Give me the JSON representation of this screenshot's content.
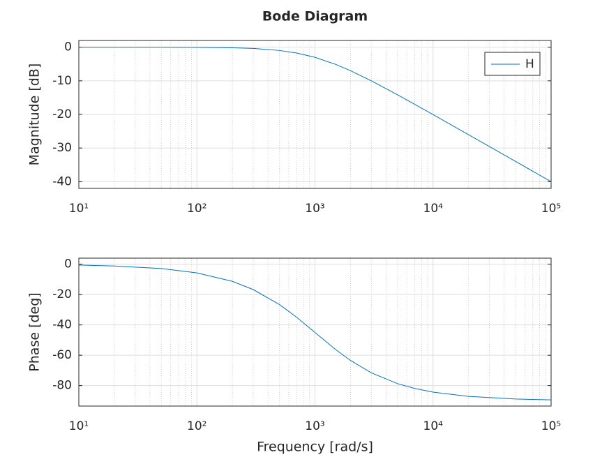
{
  "chart_data": [
    {
      "type": "line",
      "title": "Bode Diagram",
      "ylabel": "Magnitude [dB]",
      "x": [
        10,
        20,
        50,
        100,
        200,
        300,
        500,
        700,
        1000,
        1500,
        2000,
        3000,
        5000,
        7000,
        10000,
        20000,
        50000,
        100000
      ],
      "series": [
        {
          "name": "H",
          "color": "#0072bd",
          "values": [
            0,
            0,
            -0.01,
            -0.04,
            -0.17,
            -0.37,
            -0.97,
            -1.73,
            -3.01,
            -5.12,
            -6.99,
            -10,
            -14.15,
            -17,
            -20.04,
            -26.03,
            -33.98,
            -40
          ]
        }
      ],
      "xlim": [
        10,
        100000
      ],
      "xticks": [
        {
          "value": 10,
          "label": "10¹"
        },
        {
          "value": 100,
          "label": "10²"
        },
        {
          "value": 1000,
          "label": "10³"
        },
        {
          "value": 10000,
          "label": "10⁴"
        },
        {
          "value": 100000,
          "label": "10⁵"
        }
      ],
      "ylim": [
        -42,
        2
      ],
      "yticks": [
        -40,
        -30,
        -20,
        -10,
        0
      ],
      "log_x": true,
      "grid": true,
      "minor_grid": true,
      "legend": "upper right"
    },
    {
      "type": "line",
      "ylabel": "Phase [deg]",
      "xlabel": "Frequency [rad/s]",
      "x": [
        10,
        20,
        50,
        100,
        200,
        300,
        500,
        700,
        1000,
        1500,
        2000,
        3000,
        5000,
        7000,
        10000,
        20000,
        50000,
        100000
      ],
      "series": [
        {
          "color": "#0072bd",
          "values": [
            -0.57,
            -1.15,
            -2.86,
            -5.71,
            -11.31,
            -16.7,
            -26.57,
            -34.99,
            -45,
            -56.31,
            -63.43,
            -71.57,
            -78.69,
            -81.87,
            -84.29,
            -87.14,
            -88.85,
            -89.43
          ]
        }
      ],
      "xlim": [
        10,
        100000
      ],
      "xticks": [
        {
          "value": 10,
          "label": "10¹"
        },
        {
          "value": 100,
          "label": "10²"
        },
        {
          "value": 1000,
          "label": "10³"
        },
        {
          "value": 10000,
          "label": "10⁴"
        },
        {
          "value": 100000,
          "label": "10⁵"
        }
      ],
      "ylim": [
        -93.5,
        4
      ],
      "yticks": [
        -80,
        -60,
        -40,
        -20,
        0
      ],
      "log_x": true,
      "grid": true,
      "minor_grid": true
    }
  ]
}
